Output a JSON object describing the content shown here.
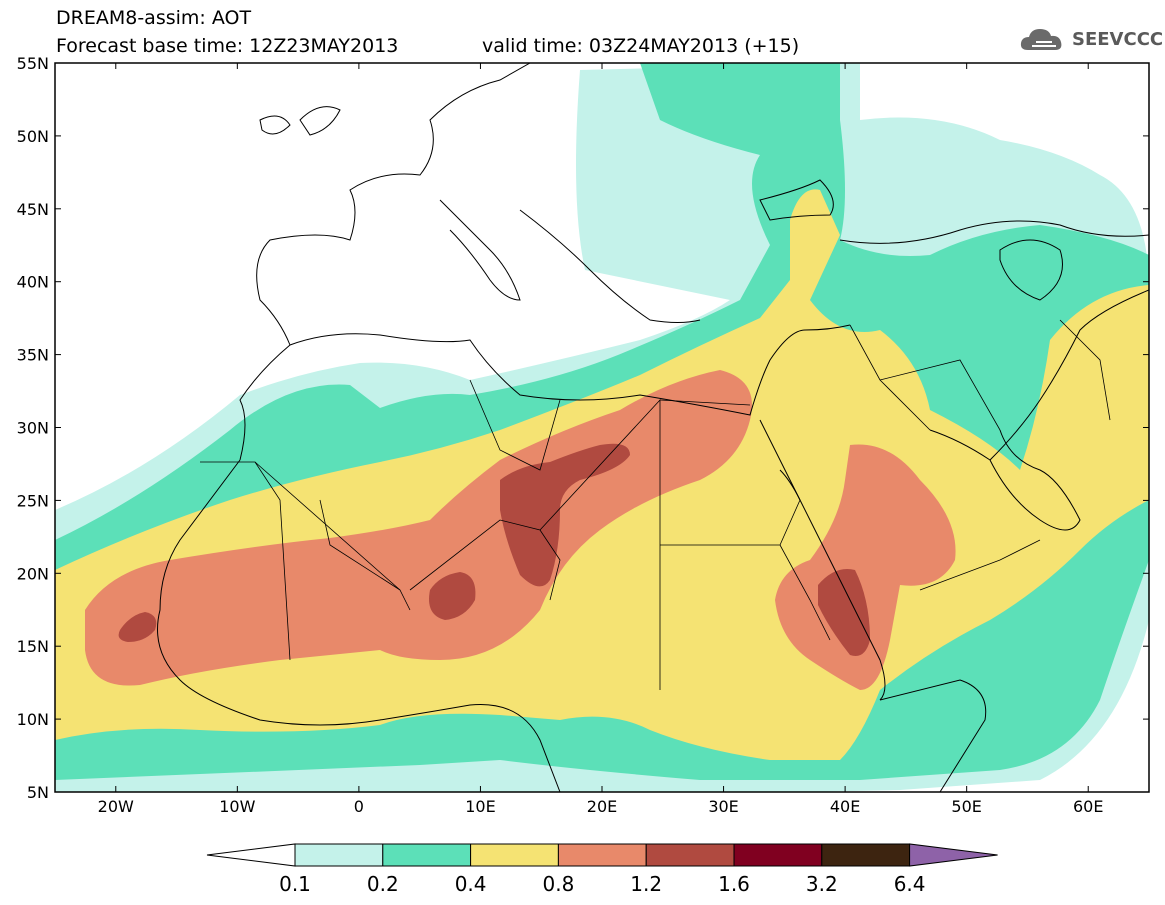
{
  "header": {
    "title": "DREAM8-assim: AOT",
    "base_time": "Forecast base time: 12Z23MAY2013",
    "valid_time": "valid time: 03Z24MAY2013 (+15)"
  },
  "logo": {
    "icon": "cloud-logo-icon",
    "text": "SEEVCCC"
  },
  "map": {
    "lat_labels": [
      "55N",
      "50N",
      "45N",
      "40N",
      "35N",
      "30N",
      "25N",
      "20N",
      "15N",
      "10N",
      "5N"
    ],
    "lon_labels": [
      "20W",
      "10W",
      "0",
      "10E",
      "20E",
      "30E",
      "40E",
      "50E",
      "60E"
    ],
    "lon_range": [
      -25,
      65
    ],
    "lat_range": [
      5,
      55
    ]
  },
  "colorbar": {
    "levels": [
      "0.1",
      "0.2",
      "0.4",
      "0.8",
      "1.2",
      "1.6",
      "3.2",
      "6.4"
    ],
    "colors": [
      "#c4f2ea",
      "#5ce0b8",
      "#f5e373",
      "#e8896a",
      "#b04a40",
      "#800020",
      "#3d2410",
      "#8e62a8"
    ],
    "under_color": "#ffffff"
  }
}
